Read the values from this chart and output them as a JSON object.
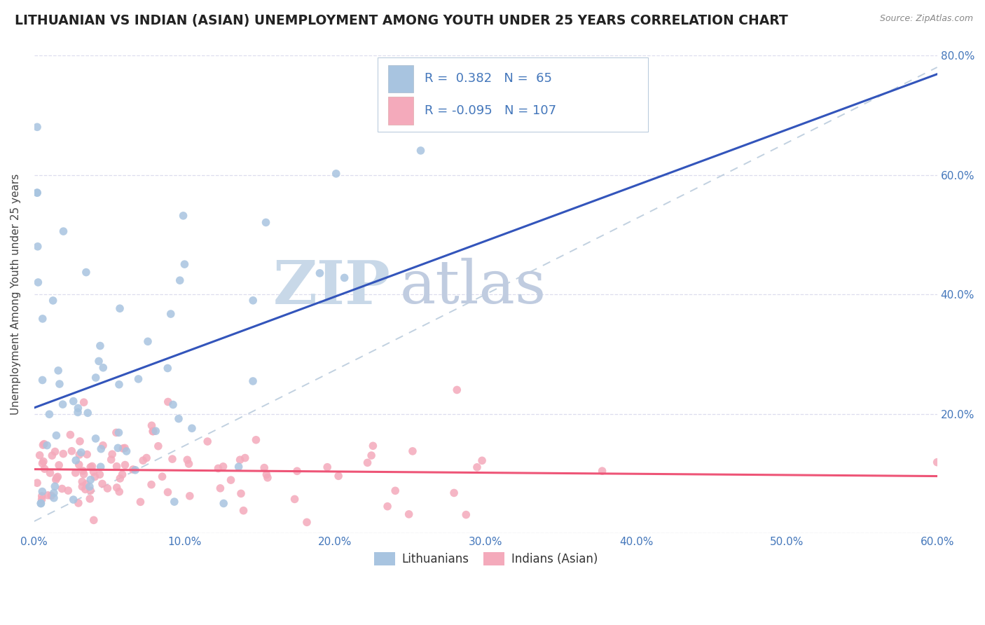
{
  "title": "LITHUANIAN VS INDIAN (ASIAN) UNEMPLOYMENT AMONG YOUTH UNDER 25 YEARS CORRELATION CHART",
  "source_text": "Source: ZipAtlas.com",
  "ylabel_text": "Unemployment Among Youth under 25 years",
  "xlim": [
    0.0,
    0.6
  ],
  "ylim": [
    0.0,
    0.8
  ],
  "xticks": [
    0.0,
    0.1,
    0.2,
    0.3,
    0.4,
    0.5,
    0.6
  ],
  "yticks": [
    0.0,
    0.2,
    0.4,
    0.6,
    0.8
  ],
  "legend_blue_label": "Lithuanians",
  "legend_pink_label": "Indians (Asian)",
  "R_blue": 0.382,
  "N_blue": 65,
  "R_pink": -0.095,
  "N_pink": 107,
  "blue_scatter_color": "#A8C4E0",
  "pink_scatter_color": "#F4AABB",
  "blue_line_color": "#3355BB",
  "pink_line_color": "#EE5577",
  "ref_line_color": "#BBCCDD",
  "watermark_zip_color": "#C8D8E8",
  "watermark_atlas_color": "#C0CCE0",
  "title_fontsize": 13.5,
  "axis_label_fontsize": 11,
  "tick_fontsize": 11,
  "legend_fontsize": 13,
  "background_color": "#FFFFFF",
  "grid_color": "#DDDDEE",
  "title_color": "#222222",
  "tick_color": "#4477BB"
}
